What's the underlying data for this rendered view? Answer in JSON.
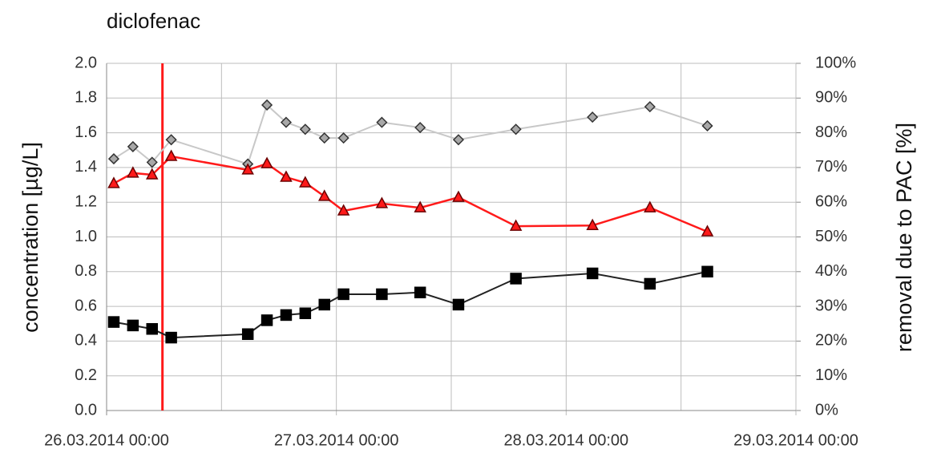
{
  "chart_data": {
    "type": "line",
    "title": "diclofenac",
    "y_label": "concentration [µg/L]",
    "y2_label": "removal due to PAC [%]",
    "x": [
      "2014-03-26T00:45",
      "2014-03-26T02:45",
      "2014-03-26T04:45",
      "2014-03-26T06:45",
      "2014-03-26T14:45",
      "2014-03-26T16:45",
      "2014-03-26T18:45",
      "2014-03-26T20:45",
      "2014-03-26T22:45",
      "2014-03-27T00:45",
      "2014-03-27T04:45",
      "2014-03-27T08:45",
      "2014-03-27T12:45",
      "2014-03-27T18:45",
      "2014-03-28T02:45",
      "2014-03-28T08:45",
      "2014-03-28T14:45"
    ],
    "xlim": [
      "2014-03-26T00:00",
      "2014-03-29T00:00"
    ],
    "xticks": [
      {
        "value": "2014-03-26T00:00",
        "label": "26.03.2014 00:00"
      },
      {
        "value": "2014-03-27T00:00",
        "label": "27.03.2014 00:00"
      },
      {
        "value": "2014-03-28T00:00",
        "label": "28.03.2014 00:00"
      },
      {
        "value": "2014-03-29T00:00",
        "label": "29.03.2014 00:00"
      }
    ],
    "x_minor_ticks": [
      "2014-03-26T12:00",
      "2014-03-27T12:00",
      "2014-03-28T12:00"
    ],
    "ylim": [
      0,
      2
    ],
    "yticks": [
      {
        "value": 0,
        "label": "0.0"
      },
      {
        "value": 0.2,
        "label": "0.2"
      },
      {
        "value": 0.4,
        "label": "0.4"
      },
      {
        "value": 0.6,
        "label": "0.6"
      },
      {
        "value": 0.8,
        "label": "0.8"
      },
      {
        "value": 1,
        "label": "1.0"
      },
      {
        "value": 1.2,
        "label": "1.2"
      },
      {
        "value": 1.4,
        "label": "1.4"
      },
      {
        "value": 1.6,
        "label": "1.6"
      },
      {
        "value": 1.8,
        "label": "1.8"
      },
      {
        "value": 2,
        "label": "2.0"
      }
    ],
    "y2lim": [
      0,
      100
    ],
    "y2ticks": [
      {
        "value": 0,
        "label": "0%"
      },
      {
        "value": 10,
        "label": "10%"
      },
      {
        "value": 20,
        "label": "20%"
      },
      {
        "value": 30,
        "label": "30%"
      },
      {
        "value": 40,
        "label": "40%"
      },
      {
        "value": 50,
        "label": "50%"
      },
      {
        "value": 60,
        "label": "60%"
      },
      {
        "value": 70,
        "label": "70%"
      },
      {
        "value": 80,
        "label": "80%"
      },
      {
        "value": 90,
        "label": "90%"
      },
      {
        "value": 100,
        "label": "100%"
      }
    ],
    "grid": true,
    "vline": {
      "x": "2014-03-26T05:50",
      "color": "#ff1a1a"
    },
    "series": [
      {
        "color": "#c8c8c8",
        "marker": "diamond",
        "values": [
          1.45,
          1.52,
          1.43,
          1.56,
          1.42,
          1.76,
          1.66,
          1.62,
          1.57,
          1.57,
          1.66,
          1.63,
          1.56,
          1.62,
          1.69,
          1.75,
          1.64
        ]
      },
      {
        "color": "#ff1a1a",
        "marker": "triangle",
        "axis": "y2",
        "values": [
          65.4,
          68.4,
          67.9,
          73.2,
          69.3,
          71.1,
          67.2,
          65.6,
          61.7,
          57.5,
          59.6,
          58.4,
          61.4,
          53.1,
          53.3,
          58.4,
          51.5
        ]
      },
      {
        "color": "#222222",
        "marker": "square",
        "values": [
          0.51,
          0.49,
          0.47,
          0.42,
          0.44,
          0.52,
          0.55,
          0.56,
          0.61,
          0.67,
          0.67,
          0.68,
          0.61,
          0.76,
          0.79,
          0.73,
          0.8
        ]
      }
    ]
  }
}
